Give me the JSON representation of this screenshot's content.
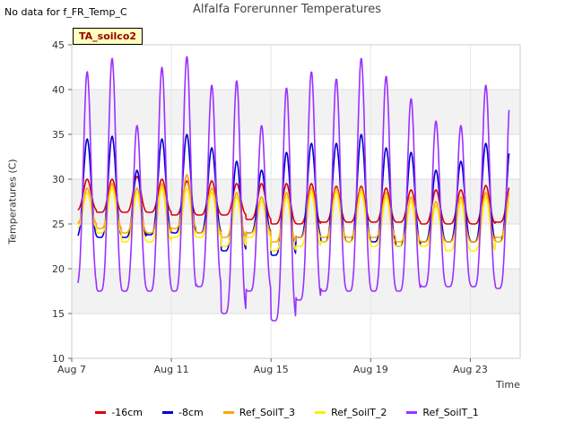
{
  "no_data_note": "No data for f_FR_Temp_C",
  "tag_label": "TA_soilco2",
  "chart_data": {
    "type": "line",
    "title": "Alfalfa Forerunner Temperatures",
    "xlabel": "Time",
    "ylabel": "Temperatures (C)",
    "ylim": [
      10,
      45
    ],
    "yticks": [
      10,
      15,
      20,
      25,
      30,
      35,
      40,
      45
    ],
    "xlim_days": [
      7,
      25
    ],
    "xticks": [
      {
        "day": 7,
        "label": "Aug 7"
      },
      {
        "day": 11,
        "label": "Aug 11"
      },
      {
        "day": 15,
        "label": "Aug 15"
      },
      {
        "day": 19,
        "label": "Aug 19"
      },
      {
        "day": 23,
        "label": "Aug 23"
      }
    ],
    "grid": true,
    "legend_position": "bottom",
    "data_range_days": [
      7.25,
      24.55
    ],
    "series": [
      {
        "name": "-16cm",
        "color": "#dd0000",
        "daily_peaks": [
          30.0,
          30.0,
          30.3,
          30.0,
          29.8,
          29.8,
          29.5,
          29.5,
          29.5,
          29.5,
          29.2,
          29.2,
          29.0,
          28.8,
          28.8,
          28.8,
          29.3,
          29.5
        ],
        "daily_troughs": [
          26.5,
          26.3,
          26.3,
          26.3,
          26.0,
          26.0,
          26.0,
          25.5,
          25.0,
          25.0,
          25.2,
          25.2,
          25.2,
          25.2,
          25.0,
          25.0,
          25.0,
          25.2
        ]
      },
      {
        "name": "-8cm",
        "color": "#0000cc",
        "daily_peaks": [
          34.5,
          34.8,
          31.0,
          34.5,
          35.0,
          33.5,
          32.0,
          31.0,
          33.0,
          34.0,
          34.0,
          35.0,
          33.5,
          33.0,
          31.0,
          32.0,
          34.0,
          34.0
        ],
        "daily_troughs": [
          23.5,
          23.5,
          23.5,
          23.8,
          24.0,
          24.0,
          22.0,
          24.0,
          21.5,
          23.5,
          23.0,
          23.0,
          23.0,
          22.5,
          23.0,
          23.0,
          23.0,
          23.0
        ]
      },
      {
        "name": "Ref_SoilT_3",
        "color": "#ffa500",
        "daily_peaks": [
          29.0,
          29.5,
          29.0,
          29.5,
          30.5,
          29.0,
          28.5,
          28.0,
          28.5,
          29.0,
          29.0,
          29.0,
          28.5,
          28.0,
          27.5,
          28.0,
          28.5,
          29.0
        ],
        "daily_troughs": [
          25.0,
          24.5,
          24.0,
          24.0,
          24.5,
          24.0,
          23.5,
          24.0,
          23.0,
          23.5,
          23.5,
          23.5,
          23.5,
          23.0,
          23.0,
          23.0,
          23.0,
          23.5
        ]
      },
      {
        "name": "Ref_SoilT_2",
        "color": "#ffee00",
        "daily_peaks": [
          28.5,
          29.0,
          28.5,
          29.0,
          29.0,
          28.5,
          28.0,
          27.5,
          28.0,
          28.5,
          28.5,
          28.5,
          28.0,
          27.5,
          27.0,
          27.5,
          28.0,
          28.0
        ],
        "daily_troughs": [
          24.5,
          24.0,
          23.0,
          23.0,
          23.5,
          23.5,
          22.5,
          23.5,
          22.0,
          22.5,
          23.0,
          23.0,
          22.5,
          22.5,
          22.5,
          22.0,
          22.0,
          23.0
        ]
      },
      {
        "name": "Ref_SoilT_1",
        "color": "#9b30ff",
        "daily_peaks": [
          42.0,
          43.5,
          36.0,
          42.5,
          43.7,
          40.5,
          41.0,
          36.0,
          40.2,
          42.0,
          41.2,
          43.5,
          41.5,
          39.0,
          36.5,
          36.0,
          40.5,
          40.0
        ],
        "daily_troughs": [
          18.0,
          17.5,
          17.5,
          17.5,
          17.5,
          18.0,
          15.0,
          17.5,
          14.2,
          16.5,
          17.5,
          17.5,
          17.5,
          17.5,
          18.0,
          18.0,
          18.0,
          17.8
        ]
      }
    ]
  }
}
